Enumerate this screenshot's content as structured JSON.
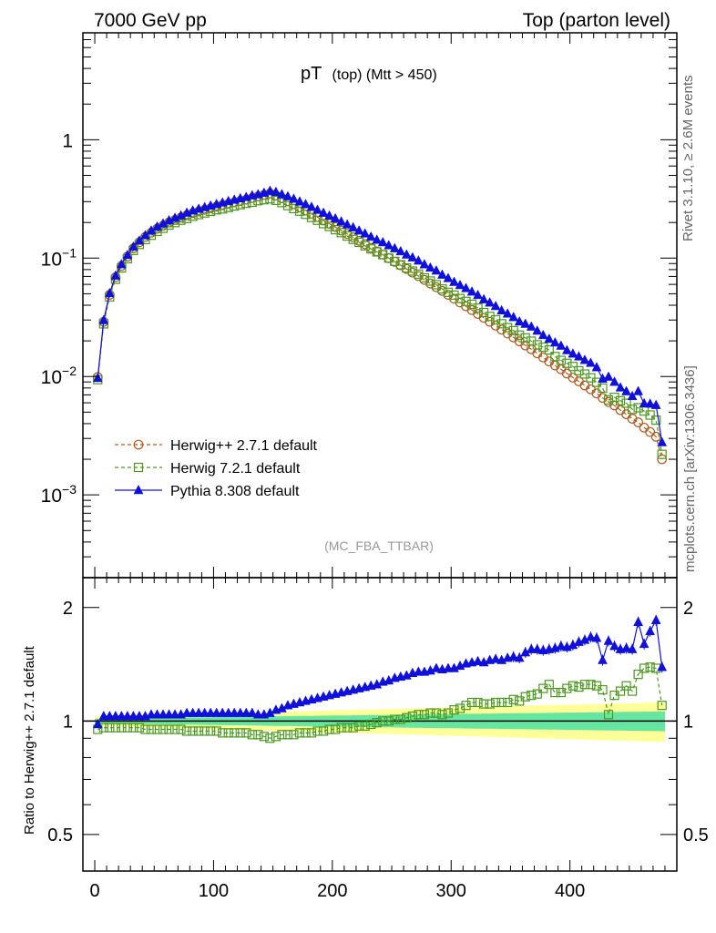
{
  "header": {
    "left": "7000 GeV pp",
    "right": "Top (parton level)"
  },
  "side_labels": {
    "rivet": "Rivet 3.1.10, ≥ 2.6M events",
    "mcplots": "mcplots.cern.ch [arXiv:1306.3436]"
  },
  "chart_data": {
    "type": "line",
    "title_main": "pT",
    "title_sub": "(top) (Mtt > 450)",
    "analysis_label": "(MC_FBA_TTBAR)",
    "ratio_ylabel": "Ratio to Herwig++ 2.7.1 default",
    "x_ticks": [
      "0",
      "100",
      "200",
      "300",
      "400"
    ],
    "ratio_ticks": [
      "0.5",
      "1",
      "2"
    ],
    "main_ticks": [
      {
        "base": "10",
        "exp": "−3"
      },
      {
        "base": "10",
        "exp": "−2"
      },
      {
        "base": "10",
        "exp": "−1"
      },
      {
        "base": "1",
        "exp": ""
      }
    ],
    "xlim": [
      -10,
      490
    ],
    "ylim_main": [
      0.0002,
      8
    ],
    "ylim_ratio": [
      0.4,
      2.4
    ],
    "y_scale": "log",
    "legend_position": "lower-left",
    "x": [
      2.5,
      7.5,
      12.5,
      17.5,
      22.5,
      27.5,
      32.5,
      37.5,
      42.5,
      47.5,
      52.5,
      57.5,
      62.5,
      67.5,
      72.5,
      77.5,
      82.5,
      87.5,
      92.5,
      97.5,
      102.5,
      107.5,
      112.5,
      117.5,
      122.5,
      127.5,
      132.5,
      137.5,
      142.5,
      147.5,
      152.5,
      157.5,
      162.5,
      167.5,
      172.5,
      177.5,
      182.5,
      187.5,
      192.5,
      197.5,
      202.5,
      207.5,
      212.5,
      217.5,
      222.5,
      227.5,
      232.5,
      237.5,
      242.5,
      247.5,
      252.5,
      257.5,
      262.5,
      267.5,
      272.5,
      277.5,
      282.5,
      287.5,
      292.5,
      297.5,
      302.5,
      307.5,
      312.5,
      317.5,
      322.5,
      327.5,
      332.5,
      337.5,
      342.5,
      347.5,
      352.5,
      357.5,
      362.5,
      367.5,
      372.5,
      377.5,
      382.5,
      387.5,
      392.5,
      397.5,
      402.5,
      407.5,
      412.5,
      417.5,
      422.5,
      427.5,
      432.5,
      437.5,
      442.5,
      447.5,
      452.5,
      457.5,
      462.5,
      467.5,
      472.5,
      477.5
    ],
    "series": [
      {
        "name": "Herwig++ 2.7.1 default",
        "color": "#b35a1f",
        "marker": "open-circle",
        "line": "dashed",
        "values": [
          0.0099,
          0.029,
          0.049,
          0.069,
          0.086,
          0.103,
          0.121,
          0.136,
          0.151,
          0.164,
          0.177,
          0.188,
          0.2,
          0.21,
          0.22,
          0.23,
          0.24,
          0.248,
          0.256,
          0.264,
          0.272,
          0.28,
          0.288,
          0.296,
          0.304,
          0.312,
          0.322,
          0.332,
          0.342,
          0.352,
          0.338,
          0.32,
          0.302,
          0.285,
          0.268,
          0.252,
          0.237,
          0.222,
          0.208,
          0.195,
          0.183,
          0.171,
          0.16,
          0.15,
          0.14,
          0.131,
          0.122,
          0.114,
          0.107,
          0.1,
          0.093,
          0.087,
          0.081,
          0.0755,
          0.0705,
          0.0655,
          0.061,
          0.0568,
          0.0528,
          0.049,
          0.0455,
          0.0422,
          0.0392,
          0.0364,
          0.0338,
          0.0313,
          0.029,
          0.0269,
          0.0249,
          0.0231,
          0.0214,
          0.0198,
          0.0183,
          0.017,
          0.0157,
          0.0145,
          0.0134,
          0.0124,
          0.0115,
          0.0106,
          0.0098,
          0.0091,
          0.0084,
          0.0078,
          0.0072,
          0.0066,
          0.0061,
          0.0057,
          0.0052,
          0.0048,
          0.0044,
          0.0041,
          0.0037,
          0.0034,
          0.0031,
          0.002
        ]
      },
      {
        "name": "Herwig 7.2.1 default",
        "color": "#4a9a1e",
        "marker": "open-square",
        "line": "dashed",
        "ratio": [
          0.95,
          0.96,
          0.96,
          0.96,
          0.96,
          0.96,
          0.96,
          0.96,
          0.95,
          0.95,
          0.95,
          0.95,
          0.95,
          0.95,
          0.95,
          0.94,
          0.94,
          0.94,
          0.94,
          0.94,
          0.94,
          0.93,
          0.93,
          0.93,
          0.93,
          0.93,
          0.92,
          0.92,
          0.91,
          0.9,
          0.91,
          0.92,
          0.92,
          0.92,
          0.93,
          0.93,
          0.93,
          0.94,
          0.94,
          0.95,
          0.95,
          0.96,
          0.96,
          0.96,
          0.97,
          0.97,
          0.98,
          0.99,
          1.0,
          1.0,
          1.01,
          1.01,
          1.02,
          1.03,
          1.04,
          1.04,
          1.05,
          1.05,
          1.04,
          1.05,
          1.07,
          1.08,
          1.1,
          1.12,
          1.12,
          1.11,
          1.11,
          1.12,
          1.12,
          1.12,
          1.14,
          1.13,
          1.16,
          1.17,
          1.18,
          1.22,
          1.25,
          1.19,
          1.19,
          1.22,
          1.24,
          1.23,
          1.25,
          1.25,
          1.24,
          1.21,
          1.04,
          1.17,
          1.2,
          1.24,
          1.2,
          1.33,
          1.38,
          1.39,
          1.38,
          1.1
        ]
      },
      {
        "name": "Pythia 8.308 default",
        "color": "#1010dd",
        "marker": "filled-triangle",
        "line": "solid",
        "ratio": [
          0.98,
          1.03,
          1.03,
          1.03,
          1.03,
          1.03,
          1.03,
          1.03,
          1.03,
          1.04,
          1.04,
          1.04,
          1.04,
          1.04,
          1.04,
          1.05,
          1.05,
          1.05,
          1.05,
          1.05,
          1.05,
          1.05,
          1.05,
          1.05,
          1.05,
          1.05,
          1.05,
          1.04,
          1.04,
          1.05,
          1.07,
          1.08,
          1.1,
          1.11,
          1.12,
          1.13,
          1.14,
          1.15,
          1.16,
          1.17,
          1.18,
          1.19,
          1.2,
          1.21,
          1.22,
          1.23,
          1.24,
          1.25,
          1.27,
          1.28,
          1.3,
          1.31,
          1.32,
          1.34,
          1.35,
          1.35,
          1.36,
          1.38,
          1.37,
          1.38,
          1.38,
          1.4,
          1.42,
          1.43,
          1.44,
          1.43,
          1.45,
          1.46,
          1.45,
          1.47,
          1.48,
          1.47,
          1.52,
          1.55,
          1.55,
          1.54,
          1.55,
          1.56,
          1.58,
          1.57,
          1.59,
          1.62,
          1.64,
          1.67,
          1.66,
          1.45,
          1.63,
          1.58,
          1.55,
          1.56,
          1.55,
          1.83,
          1.6,
          1.73,
          1.85,
          1.39
        ]
      }
    ],
    "uncertainty_bands": [
      {
        "name": "stat-inner",
        "color": "#66e6a0",
        "half_width_start": 0.015,
        "half_width_end": 0.06
      },
      {
        "name": "total-outer",
        "color": "#ffff99",
        "half_width_start": 0.03,
        "half_width_end": 0.12
      }
    ]
  }
}
